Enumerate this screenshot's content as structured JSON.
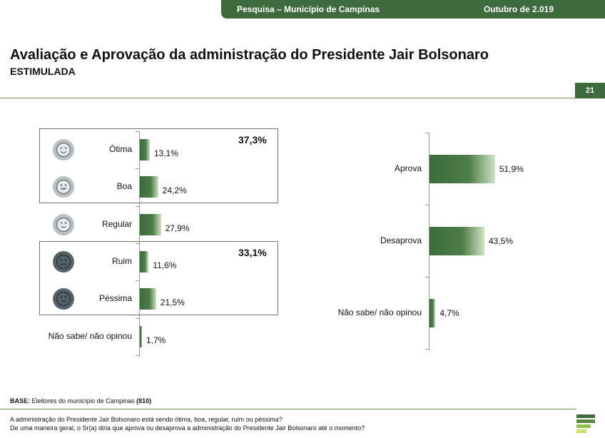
{
  "header": {
    "survey": "Pesquisa – Município de Campinas",
    "date": "Outubro de 2.019"
  },
  "title": "Avaliação e Aprovação da administração do Presidente Jair Bolsonaro",
  "subtitle": "ESTIMULADA",
  "page_number": "21",
  "groups": {
    "positive_total": "37,3%",
    "negative_total": "33,1%"
  },
  "faces": [
    "very-happy-face-icon",
    "happy-face-icon",
    "neutral-face-icon",
    "sad-face-icon",
    "very-sad-face-icon"
  ],
  "chart_data": [
    {
      "type": "bar",
      "orientation": "horizontal",
      "categories": [
        "Ótima",
        "Boa",
        "Regular",
        "Ruim",
        "Péssima",
        "Não sabe/ não opinou"
      ],
      "values": [
        13.1,
        24.2,
        27.9,
        11.6,
        21.5,
        1.7
      ],
      "value_labels": [
        "13,1%",
        "24,2%",
        "27,9%",
        "11,6%",
        "21,5%",
        "1,7%"
      ],
      "group_totals": [
        "37,3%",
        "33,1%"
      ]
    },
    {
      "type": "bar",
      "orientation": "horizontal",
      "categories": [
        "Aprova",
        "Desaprova",
        "Não sabe/ não opinou"
      ],
      "values": [
        51.9,
        43.5,
        4.7
      ],
      "value_labels": [
        "51,9%",
        "43,5%",
        "4,7%"
      ]
    }
  ],
  "base": {
    "label": "BASE:",
    "text": "Eleitores do município de Campinas",
    "n": "(810)"
  },
  "questions": [
    "A administração do Presidente Jair Bolsonaro está sendo ótima, boa, regular, ruim ou péssima?",
    "De uma maneira geral, o Sr(a) diria que aprova ou desaprova a administração do Presidente Jair Bolsonaro até o momento?"
  ],
  "colors": {
    "brand": "#3d6b3d",
    "bar_dark": "#3c6b3c",
    "bar_light": "#cfe3c5",
    "face_light": "#b9c0c3",
    "face_dark": "#55626a"
  }
}
